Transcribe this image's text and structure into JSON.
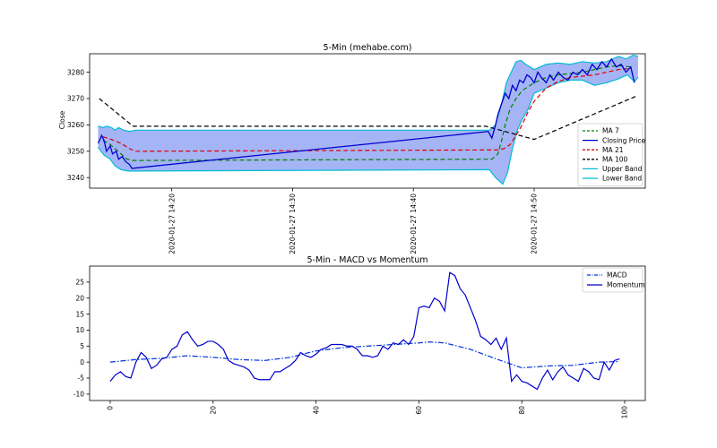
{
  "chart_data": [
    {
      "type": "line",
      "title": "5-Min (mehabe.com)",
      "xlabel": "",
      "ylabel": "Close",
      "x_ticks": [
        "2020-01-27 14:20",
        "2020-01-27 14:30",
        "2020-01-27 14:40",
        "2020-01-27 14:50"
      ],
      "x_ticks_minutes": [
        20,
        30,
        40,
        50
      ],
      "xlim_minutes": [
        13.2,
        59.2
      ],
      "y_ticks": [
        3240,
        3250,
        3260,
        3270,
        3280
      ],
      "ylim": [
        3236,
        3287
      ],
      "legend": {
        "placement": "lower-right",
        "entries": [
          "MA 7",
          "Closing Price",
          "MA 21",
          "MA 100",
          "Upper Band",
          "Lower Band"
        ]
      },
      "series": [
        {
          "name": "MA 7",
          "color": "#008000",
          "dash": "dashed",
          "x": [
            14.3,
            14.8,
            15.3,
            15.8,
            16.3,
            16.8,
            46.5,
            47.0,
            47.3,
            47.6,
            48.0,
            48.5,
            49.0,
            50.0,
            51.0,
            52.0,
            53.0,
            54.0,
            55.0,
            56.0,
            57.0,
            58.0
          ],
          "y": [
            3254,
            3253,
            3251,
            3249,
            3247,
            3246.5,
            3247,
            3249,
            3254,
            3260,
            3266,
            3270,
            3273,
            3276,
            3278,
            3279,
            3279.5,
            3280,
            3281,
            3282,
            3282.5,
            3282
          ]
        },
        {
          "name": "Closing Price",
          "color": "#0000cc",
          "dash": "solid",
          "x": [
            13.9,
            14.2,
            14.4,
            14.6,
            14.9,
            15.1,
            15.4,
            15.6,
            15.9,
            16.2,
            16.5,
            16.7,
            46.2,
            46.5,
            46.8,
            47.0,
            47.3,
            47.6,
            47.9,
            48.2,
            48.5,
            48.8,
            49.1,
            49.4,
            49.7,
            50.0,
            50.3,
            50.6,
            51.0,
            51.3,
            51.6,
            52.0,
            52.4,
            52.8,
            53.2,
            53.6,
            54.0,
            54.4,
            54.8,
            55.2,
            55.6,
            56.0,
            56.4,
            56.8,
            57.2,
            57.6,
            58.0,
            58.3
          ],
          "y": [
            3253,
            3256,
            3254,
            3250,
            3252,
            3249,
            3250,
            3247,
            3248,
            3246,
            3245,
            3243.5,
            3257.5,
            3255,
            3260,
            3264,
            3268,
            3272,
            3270,
            3275,
            3273,
            3277,
            3276,
            3279,
            3278,
            3276,
            3280,
            3278,
            3276,
            3279,
            3277,
            3280,
            3278,
            3277,
            3280,
            3279,
            3281,
            3279,
            3283,
            3281,
            3284,
            3282,
            3285,
            3282,
            3283,
            3280,
            3282,
            3276
          ]
        },
        {
          "name": "MA 21",
          "color": "#dd0000",
          "dash": "dashed",
          "x": [
            14.3,
            15.0,
            15.8,
            16.5,
            17.0,
            46.5,
            47.0,
            47.5,
            48.0,
            48.5,
            49.0,
            49.5,
            50.0,
            51.0,
            52.0,
            53.0,
            54.0,
            55.0,
            56.0,
            57.0,
            58.0
          ],
          "y": [
            3255.5,
            3254.5,
            3253,
            3251,
            3250,
            3250.5,
            3250.5,
            3251,
            3252.5,
            3256,
            3260,
            3265,
            3269,
            3274,
            3276.5,
            3278,
            3278.5,
            3279,
            3280,
            3281,
            3281.5
          ]
        },
        {
          "name": "MA 100",
          "color": "#000000",
          "dash": "dashed",
          "x": [
            14.0,
            16.8,
            46.0,
            48.0,
            50.0,
            58.5
          ],
          "y": [
            3270,
            3259.5,
            3259.5,
            3257,
            3254.5,
            3271
          ]
        },
        {
          "name": "Upper Band",
          "color": "#00bcd4",
          "dash": "solid",
          "x": [
            13.9,
            14.3,
            14.6,
            15.0,
            15.3,
            15.6,
            16.0,
            16.5,
            17.0,
            46.3,
            46.8,
            47.3,
            47.7,
            48.1,
            48.5,
            48.9,
            49.3,
            50.0,
            51.0,
            52.0,
            53.0,
            54.0,
            55.0,
            56.0,
            57.0,
            57.6,
            58.2,
            58.6
          ],
          "y": [
            3259.5,
            3259,
            3259.5,
            3259,
            3258,
            3259,
            3258,
            3257.5,
            3258,
            3258,
            3260,
            3268,
            3276,
            3280,
            3284,
            3284.5,
            3283,
            3281,
            3283,
            3283.5,
            3283,
            3284,
            3283.5,
            3284,
            3286,
            3285,
            3286.5,
            3286
          ]
        },
        {
          "name": "Lower Band",
          "color": "#00bcd4",
          "dash": "solid",
          "x": [
            13.9,
            14.4,
            14.9,
            15.3,
            15.8,
            16.4,
            17.0,
            46.3,
            46.8,
            47.4,
            47.8,
            48.2,
            48.6,
            49.0,
            49.5,
            50.0,
            51.0,
            52.0,
            53.0,
            54.0,
            55.0,
            56.0,
            57.0,
            57.7,
            58.3,
            58.6
          ],
          "y": [
            3251.5,
            3248.5,
            3247,
            3244.5,
            3243,
            3242.5,
            3242.5,
            3243,
            3240,
            3237.5,
            3242,
            3251,
            3258,
            3262,
            3266,
            3272,
            3274,
            3276,
            3277,
            3277,
            3275,
            3276,
            3277.5,
            3279,
            3276.5,
            3278
          ]
        }
      ],
      "band_fill_color": "#a5b4f5"
    },
    {
      "type": "line",
      "title": "5-Min - MACD vs Momentum",
      "xlabel": "",
      "ylabel": "",
      "x_ticks": [
        0,
        20,
        40,
        60,
        80,
        100
      ],
      "xlim": [
        -4,
        104
      ],
      "y_ticks": [
        -10,
        -5,
        0,
        5,
        10,
        15,
        20,
        25
      ],
      "ylim": [
        -12,
        30
      ],
      "legend": {
        "placement": "upper-right",
        "entries": [
          "MACD",
          "Momentum"
        ]
      },
      "series": [
        {
          "name": "MACD",
          "color": "#0033dd",
          "dash": "dashdot",
          "x": [
            0,
            5,
            10,
            15,
            20,
            25,
            30,
            35,
            40,
            45,
            50,
            55,
            60,
            62,
            65,
            70,
            75,
            80,
            85,
            90,
            95,
            99
          ],
          "y": [
            0,
            0.8,
            1.2,
            2,
            1.5,
            0.8,
            0.5,
            1.5,
            3.5,
            4.5,
            5,
            5.5,
            6,
            6.3,
            6,
            4,
            1,
            -1.8,
            -1.2,
            -1,
            0,
            0.2
          ]
        },
        {
          "name": "Momentum",
          "color": "#0000cc",
          "dash": "solid",
          "x": [
            0,
            1,
            2,
            3,
            4,
            5,
            6,
            7,
            8,
            9,
            10,
            11,
            12,
            13,
            14,
            15,
            16,
            17,
            18,
            19,
            20,
            21,
            22,
            23,
            24,
            25,
            26,
            27,
            28,
            29,
            30,
            31,
            32,
            33,
            34,
            35,
            36,
            37,
            38,
            39,
            40,
            41,
            42,
            43,
            44,
            45,
            46,
            47,
            48,
            49,
            50,
            51,
            52,
            53,
            54,
            55,
            56,
            57,
            58,
            59,
            60,
            61,
            62,
            63,
            64,
            65,
            66,
            67,
            68,
            69,
            70,
            71,
            72,
            73,
            74,
            75,
            76,
            77,
            78,
            79,
            80,
            81,
            82,
            83,
            84,
            85,
            86,
            87,
            88,
            89,
            90,
            91,
            92,
            93,
            94,
            95,
            96,
            97,
            98,
            99
          ],
          "y": [
            -6,
            -4,
            -3,
            -4.5,
            -5,
            0,
            3,
            1.5,
            -2,
            -1,
            1,
            1.5,
            4,
            5,
            8.5,
            9.5,
            7,
            5,
            5.5,
            6.5,
            6.5,
            5.5,
            4,
            0.5,
            -0.5,
            -1,
            -1.5,
            -2.5,
            -5,
            -5.5,
            -5.5,
            -5.5,
            -3,
            -3,
            -2,
            -1,
            0.5,
            3,
            2,
            1.5,
            2.5,
            4,
            4.5,
            5.5,
            5.5,
            5.5,
            5,
            5,
            4,
            2,
            2,
            1.5,
            2,
            5,
            4,
            6,
            5.5,
            7,
            5.5,
            8,
            17,
            17.5,
            17,
            20,
            19,
            16,
            28,
            27,
            23,
            21,
            17,
            13,
            8,
            7,
            5.5,
            7.5,
            4,
            7.5,
            -6,
            -4,
            -6,
            -6.5,
            -7.5,
            -8.5,
            -5,
            -2.5,
            -5.5,
            -3,
            -1.5,
            -4,
            -5,
            -6,
            -2,
            -3,
            -5,
            -5.5,
            0,
            -2.5,
            0.5,
            1
          ]
        }
      ]
    }
  ]
}
